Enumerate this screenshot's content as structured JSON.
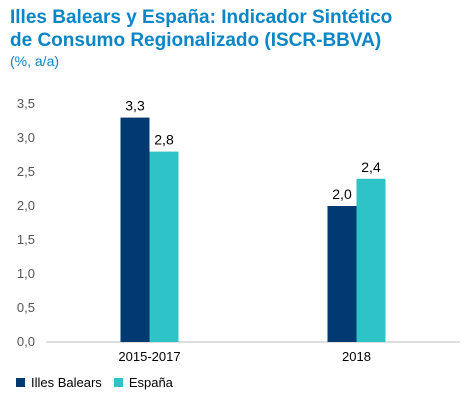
{
  "chart_data": {
    "type": "bar",
    "title_line1": "Illes Balears y España: Indicador Sintético",
    "title_line2": "de Consumo Regionalizado (ISCR-BBVA)",
    "subtitle": "(%, a/a)",
    "categories": [
      "2015-2017",
      "2018"
    ],
    "series": [
      {
        "name": "Illes Balears",
        "color": "#003a70",
        "values": [
          3.3,
          2.0
        ],
        "labels": [
          "3,3",
          "2,0"
        ]
      },
      {
        "name": "España",
        "color": "#2dc3c7",
        "values": [
          2.8,
          2.4
        ],
        "labels": [
          "2,8",
          "2,4"
        ]
      }
    ],
    "ylim": [
      0,
      3.5
    ],
    "yticks": [
      "0,0",
      "0,5",
      "1,0",
      "1,5",
      "2,0",
      "2,5",
      "3,0",
      "3,5"
    ],
    "xlabel": "",
    "ylabel": "",
    "grid": false,
    "legend_position": "bottom-left"
  }
}
